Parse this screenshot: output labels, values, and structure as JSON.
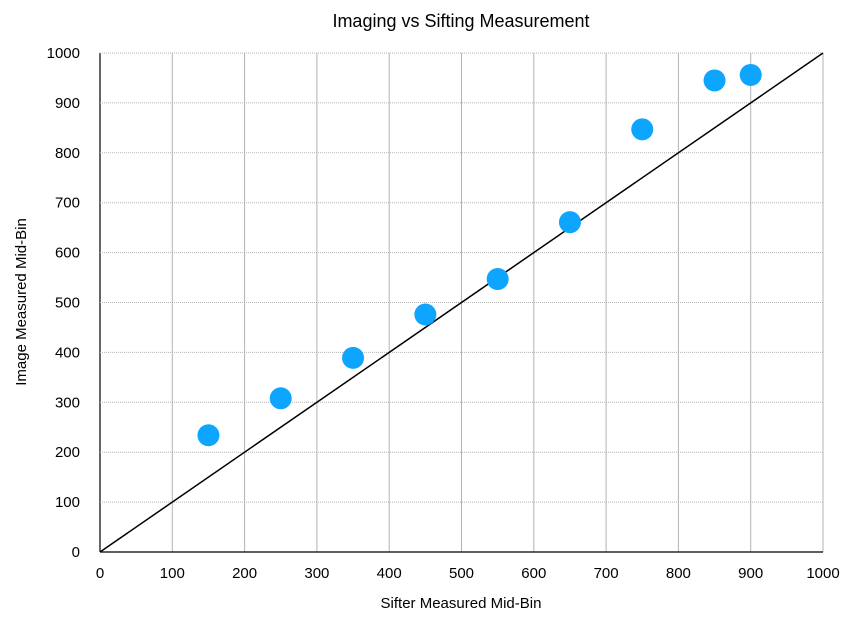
{
  "chart_data": {
    "type": "scatter",
    "title": "Imaging vs Sifting Measurement",
    "xlabel": "Sifter Measured Mid-Bin",
    "ylabel": "Image Measured Mid-Bin",
    "xlim": [
      0,
      1000
    ],
    "ylim": [
      0,
      1000
    ],
    "xticks": [
      0,
      100,
      200,
      300,
      400,
      500,
      600,
      700,
      800,
      900,
      1000
    ],
    "yticks": [
      0,
      100,
      200,
      300,
      400,
      500,
      600,
      700,
      800,
      900,
      1000
    ],
    "grid": true,
    "series": [
      {
        "x": [
          150,
          250,
          350,
          450,
          550,
          650,
          750,
          850,
          900
        ],
        "y": [
          234,
          308,
          389,
          476,
          547,
          661,
          847,
          945,
          956
        ]
      }
    ],
    "reference_line": {
      "x": [
        0,
        1000
      ],
      "y": [
        0,
        1000
      ]
    },
    "colors": {
      "points": "#0ea5ff",
      "grid": "#b3b3b3",
      "line": "#000000"
    }
  }
}
